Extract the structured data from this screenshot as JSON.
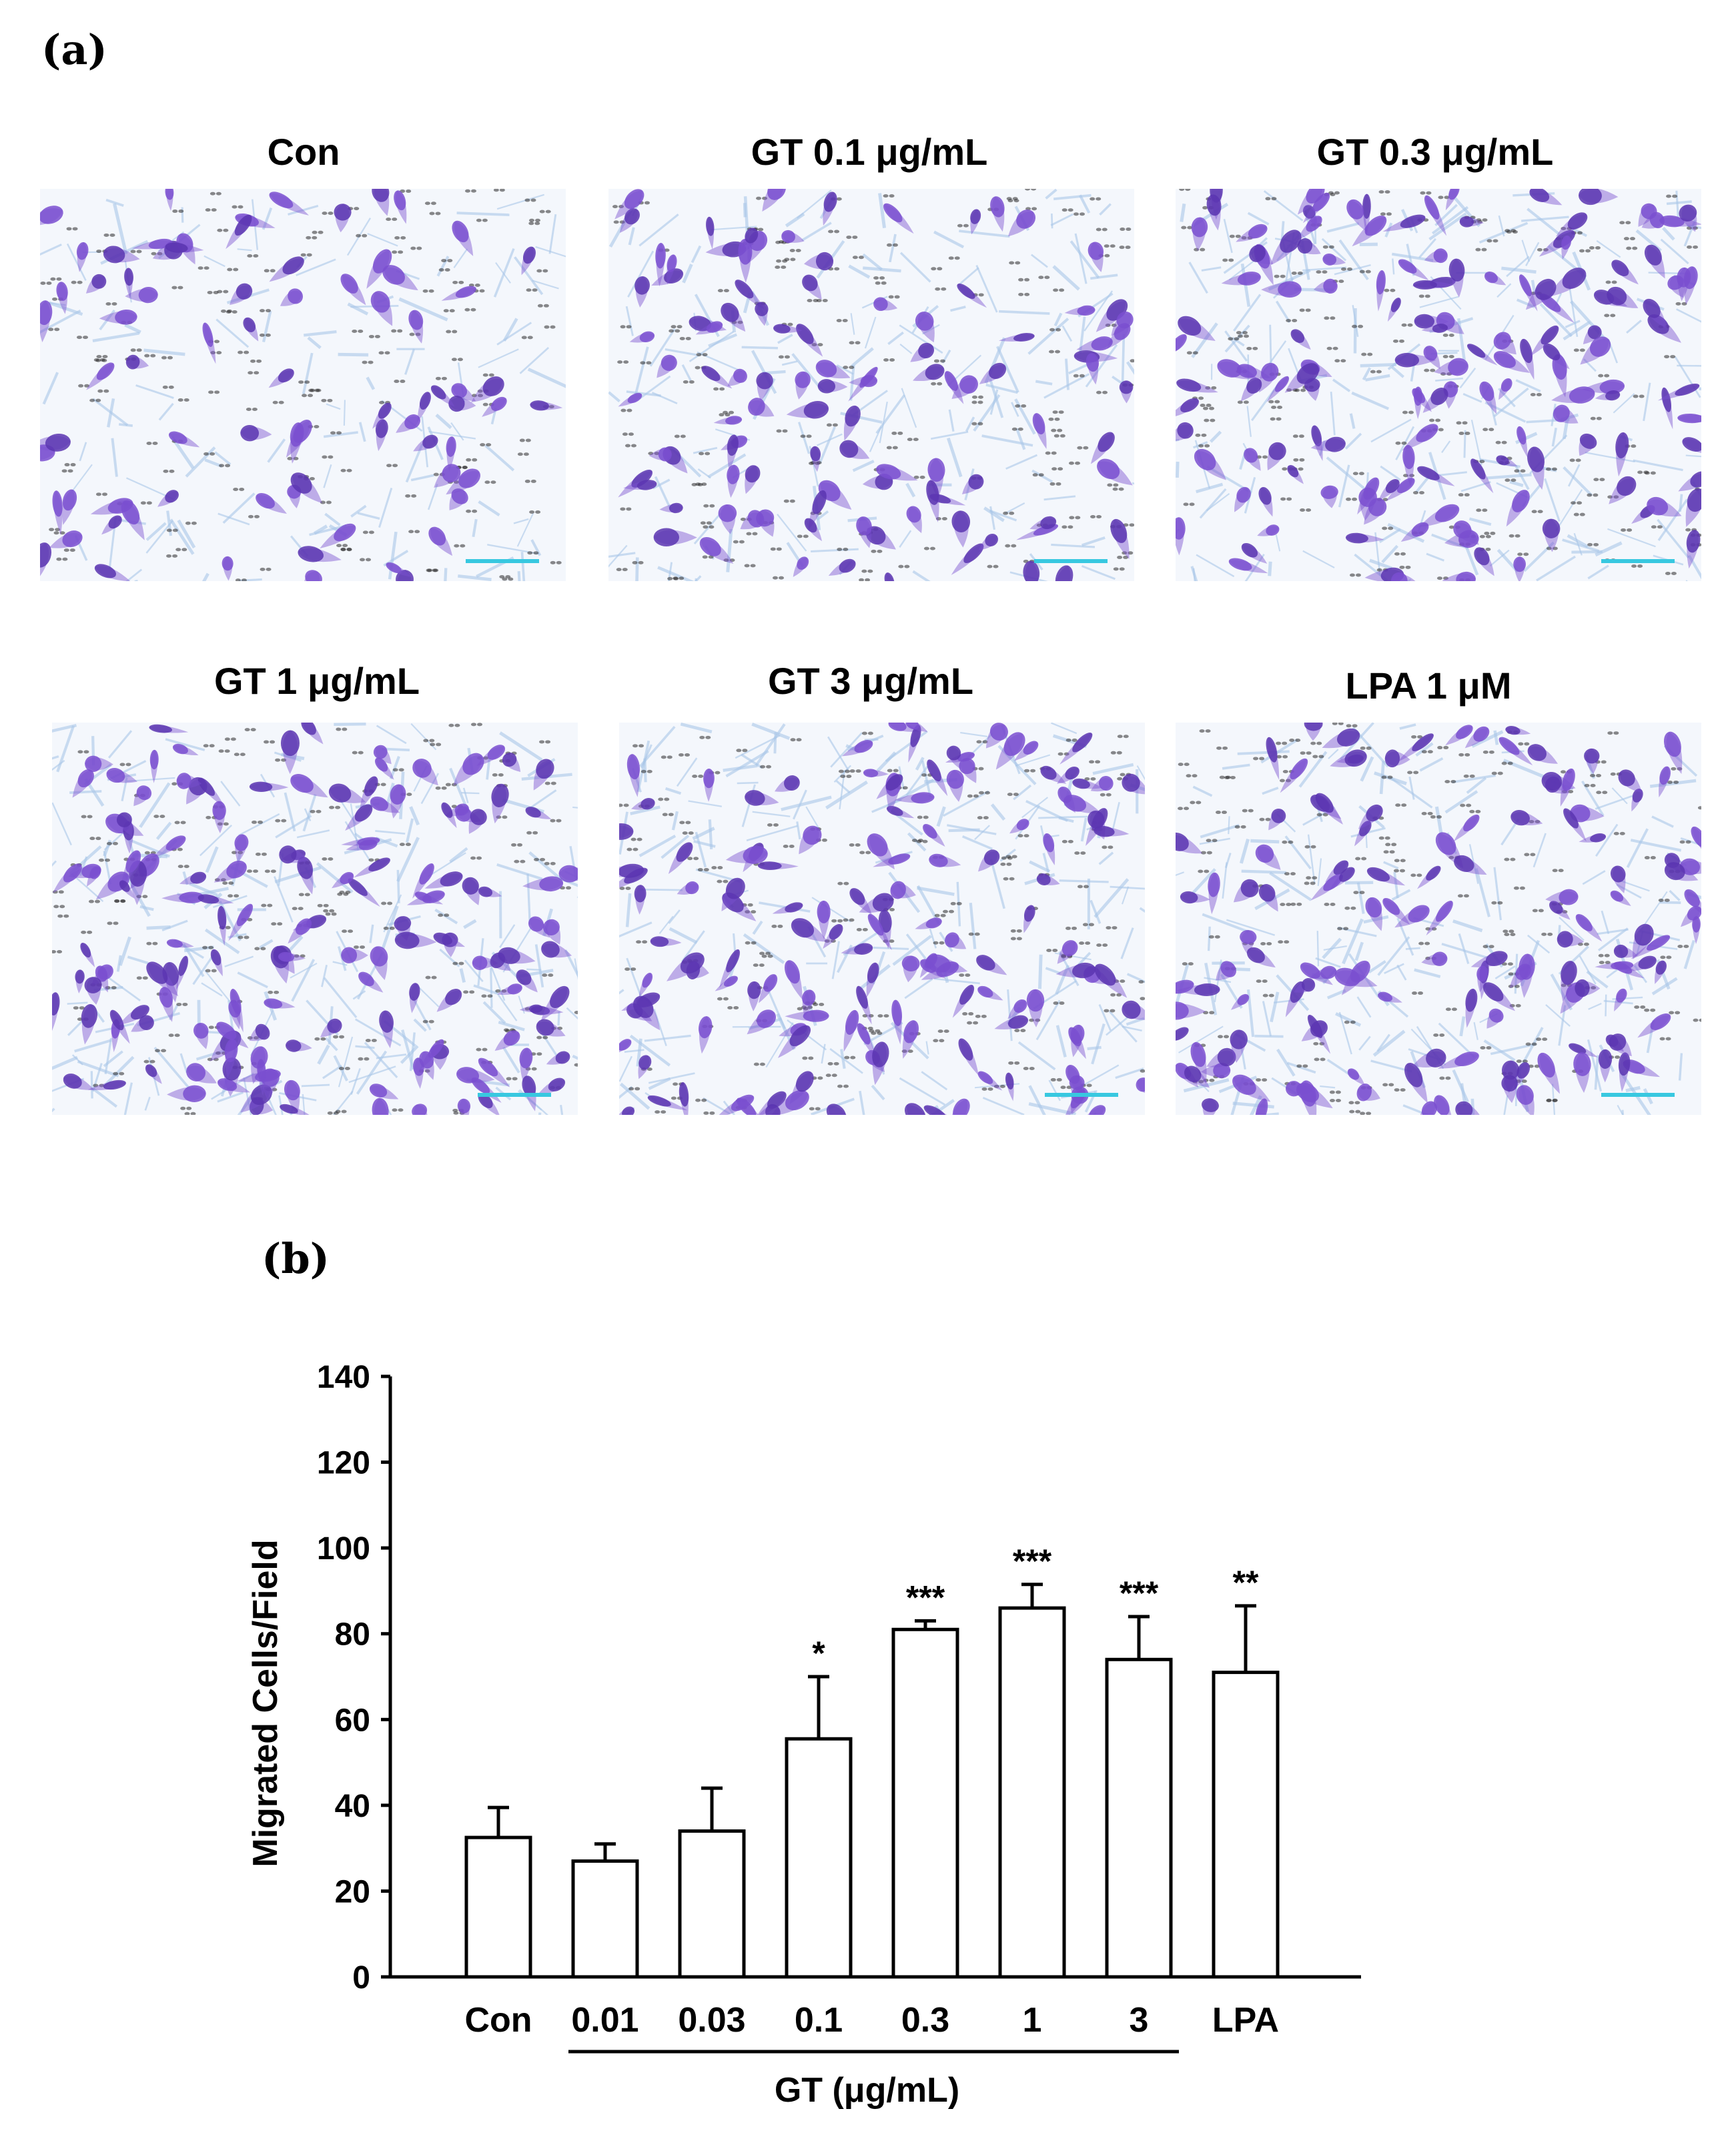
{
  "panel_a": {
    "letter": "(a)",
    "images": [
      {
        "label": "Con",
        "density": 0.35
      },
      {
        "label": "GT 0.1 μg/mL",
        "density": 0.55
      },
      {
        "label": "GT 0.3 μg/mL",
        "density": 0.85
      },
      {
        "label": "GT 1 μg/mL",
        "density": 0.95
      },
      {
        "label": "GT 3 μg/mL",
        "density": 0.8
      },
      {
        "label": "LPA 1 μM",
        "density": 0.78
      }
    ]
  },
  "panel_b": {
    "letter": "(b)",
    "group_label": "GT (μg/mL)"
  },
  "colors": {
    "cell": "#7a4fd0",
    "cell_dark": "#5a35b0",
    "fiber": "#a9c6e8",
    "pore": "#2a2a2a",
    "scalebar": "#38c8e0"
  },
  "chart_data": {
    "type": "bar",
    "categories": [
      "Con",
      "0.01",
      "0.03",
      "0.1",
      "0.3",
      "1",
      "3",
      "LPA"
    ],
    "values": [
      32.5,
      27,
      34,
      55.5,
      81,
      86,
      74,
      71
    ],
    "errors": [
      7,
      4,
      10,
      14.5,
      2,
      5.5,
      10,
      15.5
    ],
    "significance": [
      "",
      "",
      "",
      "*",
      "***",
      "***",
      "***",
      "**"
    ],
    "ylabel": "Migrated Cells/Field",
    "xlabel": "GT (μg/mL)",
    "ylim": [
      0,
      140
    ],
    "yticks": [
      0,
      20,
      40,
      60,
      80,
      100,
      120,
      140
    ],
    "grid": false,
    "bar_fill": "#ffffff",
    "bar_edge": "#000000"
  }
}
